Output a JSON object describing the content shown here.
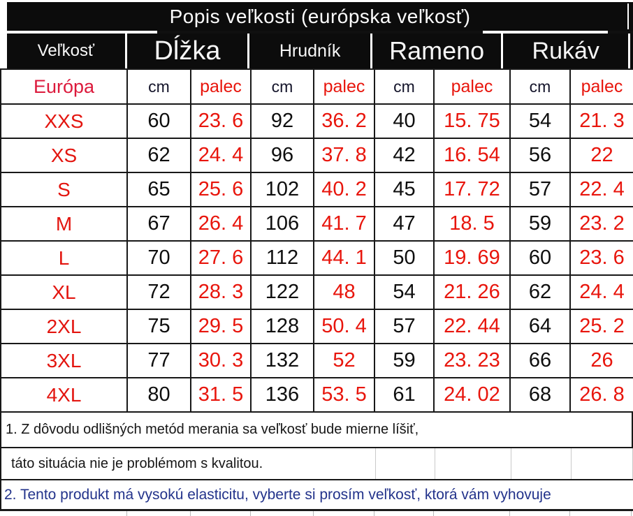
{
  "title": "Popis veľkosti (európska veľkosť)",
  "columns": {
    "size_label": "Veľkosť",
    "groups": [
      {
        "label": "Dĺžka"
      },
      {
        "label": "Hrudník"
      },
      {
        "label": "Rameno"
      },
      {
        "label": "Rukáv"
      }
    ],
    "sub": {
      "region": "Európa",
      "cm": "cm",
      "inch": "palec"
    }
  },
  "table": {
    "rows": [
      {
        "size": "XXS",
        "len_cm": "60",
        "len_in": "23. 6",
        "chest_cm": "92",
        "chest_in": "36. 2",
        "shoulder_cm": "40",
        "shoulder_in": "15. 75",
        "sleeve_cm": "54",
        "sleeve_in": "21. 3"
      },
      {
        "size": "XS",
        "len_cm": "62",
        "len_in": "24. 4",
        "chest_cm": "96",
        "chest_in": "37. 8",
        "shoulder_cm": "42",
        "shoulder_in": "16. 54",
        "sleeve_cm": "56",
        "sleeve_in": "22"
      },
      {
        "size": "S",
        "len_cm": "65",
        "len_in": "25. 6",
        "chest_cm": "102",
        "chest_in": "40. 2",
        "shoulder_cm": "45",
        "shoulder_in": "17. 72",
        "sleeve_cm": "57",
        "sleeve_in": "22. 4"
      },
      {
        "size": "M",
        "len_cm": "67",
        "len_in": "26. 4",
        "chest_cm": "106",
        "chest_in": "41. 7",
        "shoulder_cm": "47",
        "shoulder_in": "18. 5",
        "sleeve_cm": "59",
        "sleeve_in": "23. 2"
      },
      {
        "size": "L",
        "len_cm": "70",
        "len_in": "27. 6",
        "chest_cm": "112",
        "chest_in": "44. 1",
        "shoulder_cm": "50",
        "shoulder_in": "19. 69",
        "sleeve_cm": "60",
        "sleeve_in": "23. 6"
      },
      {
        "size": "XL",
        "len_cm": "72",
        "len_in": "28. 3",
        "chest_cm": "122",
        "chest_in": "48",
        "shoulder_cm": "54",
        "shoulder_in": "21. 26",
        "sleeve_cm": "62",
        "sleeve_in": "24. 4"
      },
      {
        "size": "2XL",
        "len_cm": "75",
        "len_in": "29. 5",
        "chest_cm": "128",
        "chest_in": "50. 4",
        "shoulder_cm": "57",
        "shoulder_in": "22. 44",
        "sleeve_cm": "64",
        "sleeve_in": "25. 2"
      },
      {
        "size": "3XL",
        "len_cm": "77",
        "len_in": "30. 3",
        "chest_cm": "132",
        "chest_in": "52",
        "shoulder_cm": "59",
        "shoulder_in": "23. 23",
        "sleeve_cm": "66",
        "sleeve_in": "26"
      },
      {
        "size": "4XL",
        "len_cm": "80",
        "len_in": "31. 5",
        "chest_cm": "136",
        "chest_in": "53. 5",
        "shoulder_cm": "61",
        "shoulder_in": "24. 02",
        "sleeve_cm": "68",
        "sleeve_in": "26. 8"
      }
    ]
  },
  "notes": {
    "note1_line1": "1. Z dôvodu odlišných metód merania sa veľkosť bude mierne líšiť,",
    "note1_line2": "táto situácia nie je problémom s kvalitou.",
    "note2": "2. Tento produkt má vysokú elasticitu, vyberte si prosím veľkosť, ktorá vám vyhovuje"
  },
  "colors": {
    "red": "#e8150c",
    "crimson": "#dc1a3c",
    "blue": "#23338b",
    "band_black": "#0c0c0c"
  }
}
